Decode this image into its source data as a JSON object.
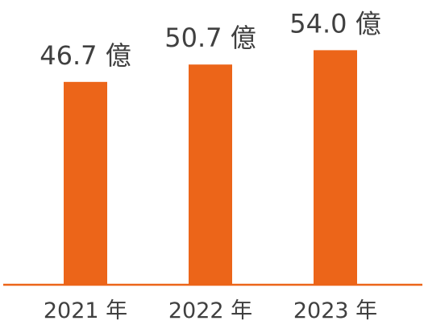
{
  "chart_data": {
    "type": "bar",
    "title": "",
    "xlabel": "",
    "ylabel": "",
    "categories": [
      "2021 年",
      "2022 年",
      "2023 年"
    ],
    "values": [
      46.7,
      50.7,
      54.0
    ],
    "data_labels": [
      "46.7 億",
      "50.7 億",
      "54.0 億"
    ],
    "ylim": [
      0,
      55
    ],
    "grid": false,
    "legend": "none",
    "colors": {
      "bar": "#EC6519",
      "axis": "#EC6519",
      "text": "#404040"
    }
  }
}
